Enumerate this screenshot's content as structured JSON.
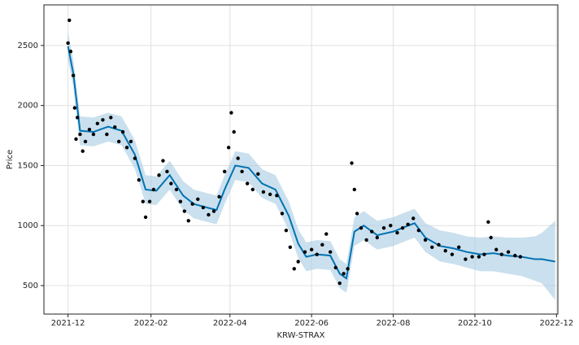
{
  "chart_data": {
    "type": "forecast",
    "xlabel": "KRW-STRAX",
    "ylabel": "Price",
    "xlim": [
      "2021-11-13",
      "2022-12-02"
    ],
    "ylim": [
      263,
      2838
    ],
    "xticks": [
      "2021-12",
      "2022-02",
      "2022-04",
      "2022-06",
      "2022-08",
      "2022-10",
      "2022-12"
    ],
    "yticks": [
      500,
      1000,
      1500,
      2000,
      2500
    ],
    "grid": true,
    "series": [
      {
        "kind": "scatter",
        "color": "#000000",
        "x": [
          "2021-12-01",
          "2021-12-02",
          "2021-12-03",
          "2021-12-05",
          "2021-12-06",
          "2021-12-07",
          "2021-12-08",
          "2021-12-10",
          "2021-12-12",
          "2021-12-14",
          "2021-12-17",
          "2021-12-20",
          "2021-12-23",
          "2021-12-27",
          "2021-12-30",
          "2022-01-02",
          "2022-01-05",
          "2022-01-08",
          "2022-01-11",
          "2022-01-14",
          "2022-01-17",
          "2022-01-20",
          "2022-01-23",
          "2022-01-26",
          "2022-01-28",
          "2022-01-31",
          "2022-02-03",
          "2022-02-07",
          "2022-02-10",
          "2022-02-13",
          "2022-02-16",
          "2022-02-20",
          "2022-02-23",
          "2022-02-26",
          "2022-03-01",
          "2022-03-04",
          "2022-03-08",
          "2022-03-12",
          "2022-03-16",
          "2022-03-20",
          "2022-03-24",
          "2022-03-28",
          "2022-03-31",
          "2022-04-02",
          "2022-04-04",
          "2022-04-07",
          "2022-04-10",
          "2022-04-14",
          "2022-04-18",
          "2022-04-22",
          "2022-04-26",
          "2022-05-01",
          "2022-05-06",
          "2022-05-10",
          "2022-05-13",
          "2022-05-16",
          "2022-05-19",
          "2022-05-22",
          "2022-05-27",
          "2022-06-01",
          "2022-06-05",
          "2022-06-09",
          "2022-06-12",
          "2022-06-15",
          "2022-06-19",
          "2022-06-22",
          "2022-06-25",
          "2022-06-28",
          "2022-07-01",
          "2022-07-03",
          "2022-07-05",
          "2022-07-08",
          "2022-07-12",
          "2022-07-16",
          "2022-07-20",
          "2022-07-25",
          "2022-07-30",
          "2022-08-04",
          "2022-08-08",
          "2022-08-12",
          "2022-08-16",
          "2022-08-20",
          "2022-08-25",
          "2022-08-30",
          "2022-09-04",
          "2022-09-09",
          "2022-09-14",
          "2022-09-19",
          "2022-09-24",
          "2022-09-29",
          "2022-10-04",
          "2022-10-08",
          "2022-10-11",
          "2022-10-13",
          "2022-10-17",
          "2022-10-21",
          "2022-10-26",
          "2022-10-31",
          "2022-11-04"
        ],
        "values": [
          2520,
          2710,
          2450,
          2250,
          1980,
          1720,
          1900,
          1760,
          1620,
          1700,
          1800,
          1760,
          1850,
          1880,
          1760,
          1900,
          1820,
          1700,
          1780,
          1650,
          1700,
          1560,
          1380,
          1200,
          1070,
          1200,
          1300,
          1420,
          1540,
          1450,
          1350,
          1300,
          1200,
          1120,
          1040,
          1180,
          1220,
          1150,
          1090,
          1120,
          1240,
          1450,
          1650,
          1940,
          1780,
          1560,
          1450,
          1350,
          1300,
          1430,
          1280,
          1260,
          1250,
          1100,
          960,
          820,
          640,
          700,
          780,
          800,
          760,
          840,
          930,
          780,
          650,
          520,
          600,
          640,
          1520,
          1300,
          1100,
          980,
          880,
          950,
          900,
          980,
          1000,
          940,
          980,
          1010,
          1060,
          960,
          880,
          820,
          840,
          790,
          760,
          820,
          720,
          740,
          740,
          760,
          1030,
          900,
          800,
          760,
          780,
          750,
          740
        ]
      },
      {
        "kind": "line",
        "color": "#0072b2",
        "band_color": "#a6cbe3",
        "x": [
          "2021-12-01",
          "2021-12-05",
          "2021-12-10",
          "2021-12-20",
          "2021-12-31",
          "2022-01-10",
          "2022-01-20",
          "2022-01-28",
          "2022-02-05",
          "2022-02-15",
          "2022-02-25",
          "2022-03-05",
          "2022-03-15",
          "2022-03-22",
          "2022-03-28",
          "2022-04-05",
          "2022-04-15",
          "2022-04-25",
          "2022-05-05",
          "2022-05-15",
          "2022-05-22",
          "2022-05-28",
          "2022-06-05",
          "2022-06-15",
          "2022-06-22",
          "2022-06-27",
          "2022-07-03",
          "2022-07-10",
          "2022-07-20",
          "2022-08-01",
          "2022-08-10",
          "2022-08-17",
          "2022-08-25",
          "2022-09-05",
          "2022-09-15",
          "2022-09-25",
          "2022-10-05",
          "2022-10-15",
          "2022-10-25",
          "2022-11-05",
          "2022-11-15",
          "2022-11-20",
          "2022-11-30"
        ],
        "values": [
          2493,
          2264,
          1790,
          1780,
          1824,
          1790,
          1590,
          1300,
          1290,
          1420,
          1250,
          1180,
          1150,
          1130,
          1300,
          1500,
          1480,
          1350,
          1300,
          1080,
          850,
          740,
          760,
          750,
          600,
          560,
          950,
          1000,
          920,
          950,
          990,
          1020,
          900,
          830,
          810,
          780,
          760,
          770,
          750,
          740,
          720,
          720,
          700
        ],
        "lower": [
          2380,
          2150,
          1670,
          1660,
          1700,
          1670,
          1470,
          1180,
          1170,
          1300,
          1130,
          1060,
          1030,
          1010,
          1180,
          1380,
          1360,
          1230,
          1180,
          960,
          730,
          620,
          640,
          630,
          480,
          440,
          830,
          880,
          800,
          830,
          870,
          900,
          780,
          700,
          680,
          650,
          620,
          620,
          600,
          580,
          540,
          520,
          380
        ],
        "upper": [
          2610,
          2380,
          1910,
          1900,
          1940,
          1910,
          1710,
          1420,
          1410,
          1540,
          1370,
          1300,
          1270,
          1250,
          1420,
          1620,
          1600,
          1470,
          1420,
          1200,
          970,
          860,
          880,
          870,
          720,
          680,
          1070,
          1120,
          1040,
          1070,
          1110,
          1140,
          1020,
          960,
          940,
          910,
          900,
          910,
          900,
          900,
          910,
          940,
          1040
        ]
      }
    ]
  }
}
